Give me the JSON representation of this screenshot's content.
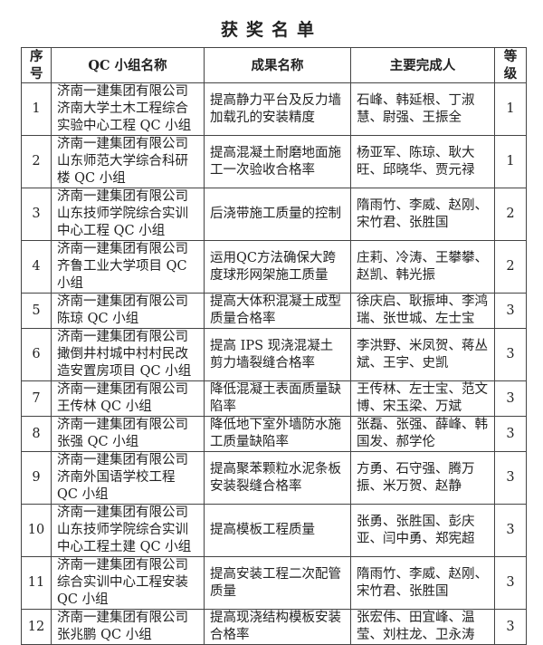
{
  "title": "获奖名单",
  "headers": {
    "no": "序号",
    "group": "QC 小组名称",
    "result": "成果名称",
    "people": "主要完成人",
    "level": "等级"
  },
  "rows": [
    {
      "no": "1",
      "group": "济南一建集团有限公司济南大学土木工程综合实验中心工程 QC 小组",
      "result": "提高静力平台及反力墙加载孔的安装精度",
      "people": "石峰、韩延根、丁淑慧、尉强、王振全",
      "level": "1"
    },
    {
      "no": "2",
      "group": "济南一建集团有限公司山东师范大学综合科研楼 QC 小组",
      "result": "提高混凝土耐磨地面施工一次验收合格率",
      "people": "杨亚军、陈琼、耿大旺、邱晓华、贾元禄",
      "level": "1"
    },
    {
      "no": "3",
      "group": "济南一建集团有限公司山东技师学院综合实训中心工程 QC 小组",
      "result": "后浇带施工质量的控制",
      "people": "隋雨竹、李威、赵刚、宋竹君、张胜国",
      "level": "2"
    },
    {
      "no": "4",
      "group": "济南一建集团有限公司齐鲁工业大学项目 QC 小组",
      "result": "运用QC方法确保大跨度球形网架施工质量",
      "people": "庄莉、冷涛、王攀攀、赵凯、韩光振",
      "level": "2"
    },
    {
      "no": "5",
      "group": "济南一建集团有限公司陈琼 QC 小组",
      "result": "提高大体积混凝土成型质量合格率",
      "people": "徐庆启、耿振坤、李鸿瑞、张世城、左士宝",
      "level": "3"
    },
    {
      "no": "6",
      "group": "济南一建集团有限公司撖倒井村城中村村民改造安置房项目 QC 小组",
      "result": "提高 IPS 现浇混凝土剪力墙裂缝合格率",
      "people": "李洪野、米凤贺、蒋丛斌、王宇、史凯",
      "level": "3"
    },
    {
      "no": "7",
      "group": "济南一建集团有限公司王传林 QC 小组",
      "result": "降低混凝土表面质量缺陷率",
      "people": "王传林、左士宝、范文博、宋玉梁、万斌",
      "level": "3"
    },
    {
      "no": "8",
      "group": "济南一建集团有限公司张强 QC 小组",
      "result": "降低地下室外墙防水施工质量缺陷率",
      "people": "张磊、张强、薛峰、韩国发、郝学伦",
      "level": "3"
    },
    {
      "no": "9",
      "group": "济南一建集团有限公司济南外国语学校工程 QC 小组",
      "result": "提高聚苯颗粒水泥条板安装裂缝合格率",
      "people": "方勇、石守强、腾万振、米万贺、赵静",
      "level": "3"
    },
    {
      "no": "10",
      "group": "济南一建集团有限公司山东技师学院综合实训中心工程土建 QC 小组",
      "result": "提高模板工程质量",
      "people": "张勇、张胜国、彭庆亚、闫中勇、郑宪超",
      "level": "3"
    },
    {
      "no": "11",
      "group": "济南一建集团有限公司综合实训中心工程安装 QC 小组",
      "result": "提高安装工程二次配管质量",
      "people": "隋雨竹、李威、赵刚、宋竹君、张胜国",
      "level": "3"
    },
    {
      "no": "12",
      "group": "济南一建集团有限公司张兆鹏 QC 小组",
      "result": "提高现浇结构模板安装合格率",
      "people": "张宏伟、田宜峰、温莹、刘柱龙、卫永涛",
      "level": "3"
    }
  ]
}
